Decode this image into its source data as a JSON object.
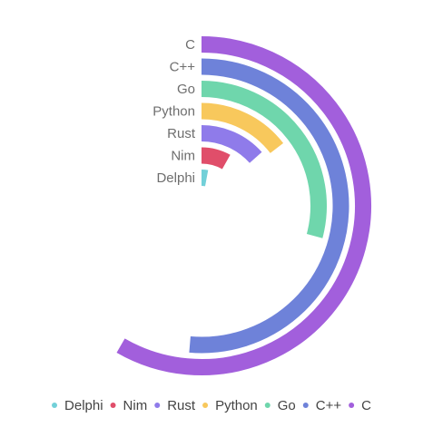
{
  "chart_data": {
    "type": "radial-bar",
    "categories": [
      "C",
      "C++",
      "Go",
      "Python",
      "Rust",
      "Nim",
      "Delphi"
    ],
    "values": [
      100,
      88,
      50,
      25,
      23,
      14,
      5
    ],
    "max_value": 100,
    "max_angle_degrees": 210,
    "colors": [
      "#a25fdc",
      "#6e82d9",
      "#6fd6ac",
      "#f8c85c",
      "#8f7bea",
      "#e04e6a",
      "#72d0d8"
    ],
    "legend": {
      "placement": "bottom",
      "items": [
        {
          "label": "Delphi",
          "color": "#72d0d8"
        },
        {
          "label": "Nim",
          "color": "#e04e6a"
        },
        {
          "label": "Rust",
          "color": "#8f7bea"
        },
        {
          "label": "Python",
          "color": "#f8c85c"
        },
        {
          "label": "Go",
          "color": "#6fd6ac"
        },
        {
          "label": "C++",
          "color": "#6e82d9"
        },
        {
          "label": "C",
          "color": "#a25fdc"
        }
      ]
    }
  }
}
